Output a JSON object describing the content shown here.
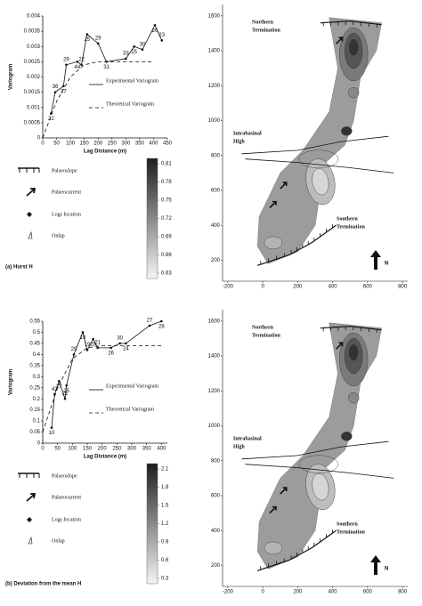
{
  "chart_data": [
    {
      "type": "line",
      "xlabel": "Lag Distance (m)",
      "ylabel": "Variogram",
      "xlim": [
        0,
        450
      ],
      "xticks": [
        0,
        50,
        100,
        150,
        200,
        250,
        300,
        350,
        400,
        450
      ],
      "ylim": [
        0,
        0.004
      ],
      "yticks": [
        0,
        0.0005,
        0.001,
        0.0015,
        0.002,
        0.0025,
        0.003,
        0.0035,
        0.004
      ],
      "series": [
        {
          "name": "Experimental Variogram",
          "color": "#111111",
          "x": [
            30,
            45,
            75,
            85,
            125,
            140,
            160,
            200,
            230,
            300,
            330,
            360,
            405,
            430
          ],
          "values": [
            0.0008,
            0.0015,
            0.0017,
            0.0024,
            0.0025,
            0.0024,
            0.0034,
            0.0031,
            0.0025,
            0.0026,
            0.003,
            0.0029,
            0.0037,
            0.0032
          ],
          "point_labels": [
            "22",
            "36",
            "37",
            "29",
            "44",
            "22",
            "25",
            "29",
            "31",
            "33",
            "25",
            "30",
            "26",
            "23"
          ]
        },
        {
          "name": "Theoretical Variogram",
          "color": "#111111",
          "dashed": true,
          "x": [
            0,
            50,
            100,
            150,
            200,
            300,
            400
          ],
          "values": [
            0,
            0.0012,
            0.002,
            0.0024,
            0.0025,
            0.0025,
            0.0025
          ]
        }
      ]
    },
    {
      "type": "line",
      "xlabel": "Lag Distance (m)",
      "ylabel": "Variogram",
      "xlim": [
        0,
        420
      ],
      "xticks": [
        0,
        50,
        100,
        150,
        200,
        250,
        300,
        350,
        400
      ],
      "ylim": [
        0,
        0.55
      ],
      "yticks": [
        0,
        0.05,
        0.1,
        0.15,
        0.2,
        0.25,
        0.3,
        0.35,
        0.4,
        0.45,
        0.5,
        0.55
      ],
      "series": [
        {
          "name": "Experimental Variogram",
          "color": "#111111",
          "x": [
            30,
            40,
            55,
            75,
            80,
            105,
            135,
            150,
            170,
            185,
            230,
            260,
            280,
            360,
            400
          ],
          "values": [
            0.07,
            0.22,
            0.28,
            0.2,
            0.26,
            0.4,
            0.5,
            0.42,
            0.47,
            0.43,
            0.43,
            0.45,
            0.45,
            0.53,
            0.55
          ],
          "point_labels": [
            "10",
            "43",
            "27",
            "21",
            "25",
            "29",
            "19",
            "19",
            "28",
            "21",
            "26",
            "30",
            "24",
            "27",
            "28"
          ]
        },
        {
          "name": "Theoretical Variogram",
          "color": "#111111",
          "dashed": true,
          "x": [
            0,
            50,
            100,
            150,
            200,
            300,
            400
          ],
          "values": [
            0.05,
            0.25,
            0.38,
            0.43,
            0.44,
            0.44,
            0.44
          ]
        }
      ]
    }
  ],
  "legend": [
    "Palaeoslope",
    "Palaeocurrent",
    "Logs location",
    "Onlap"
  ],
  "panels": [
    {
      "caption": "(a) Hurst H",
      "colorbar": {
        "ticks": [
          0.81,
          0.78,
          0.75,
          0.72,
          0.69,
          0.66,
          0.63
        ]
      },
      "map": {
        "xlim": [
          -230,
          830
        ],
        "xticks": [
          -200,
          0,
          200,
          400,
          600,
          800
        ],
        "ylim": [
          80,
          1640
        ],
        "yticks": [
          200,
          400,
          600,
          800,
          1000,
          1200,
          1400,
          1600
        ],
        "north": [
          "Northern",
          "Termination"
        ],
        "high": [
          "Intrabasinal",
          "High"
        ],
        "south": [
          "Southern",
          "Termination"
        ],
        "arrow": "N"
      }
    },
    {
      "caption": "(b) Deviation from the mean H",
      "colorbar": {
        "ticks": [
          2.1,
          1.8,
          1.5,
          1.2,
          0.9,
          0.6,
          0.3
        ]
      },
      "map": {
        "xlim": [
          -230,
          830
        ],
        "xticks": [
          -200,
          0,
          200,
          400,
          600,
          800
        ],
        "ylim": [
          80,
          1640
        ],
        "yticks": [
          200,
          400,
          600,
          800,
          1000,
          1200,
          1400,
          1600
        ],
        "north": [
          "Northern",
          "Termination"
        ],
        "high": [
          "Intrabasinal",
          "High"
        ],
        "south": [
          "Southern",
          "Termination"
        ],
        "arrow": "N"
      }
    }
  ]
}
